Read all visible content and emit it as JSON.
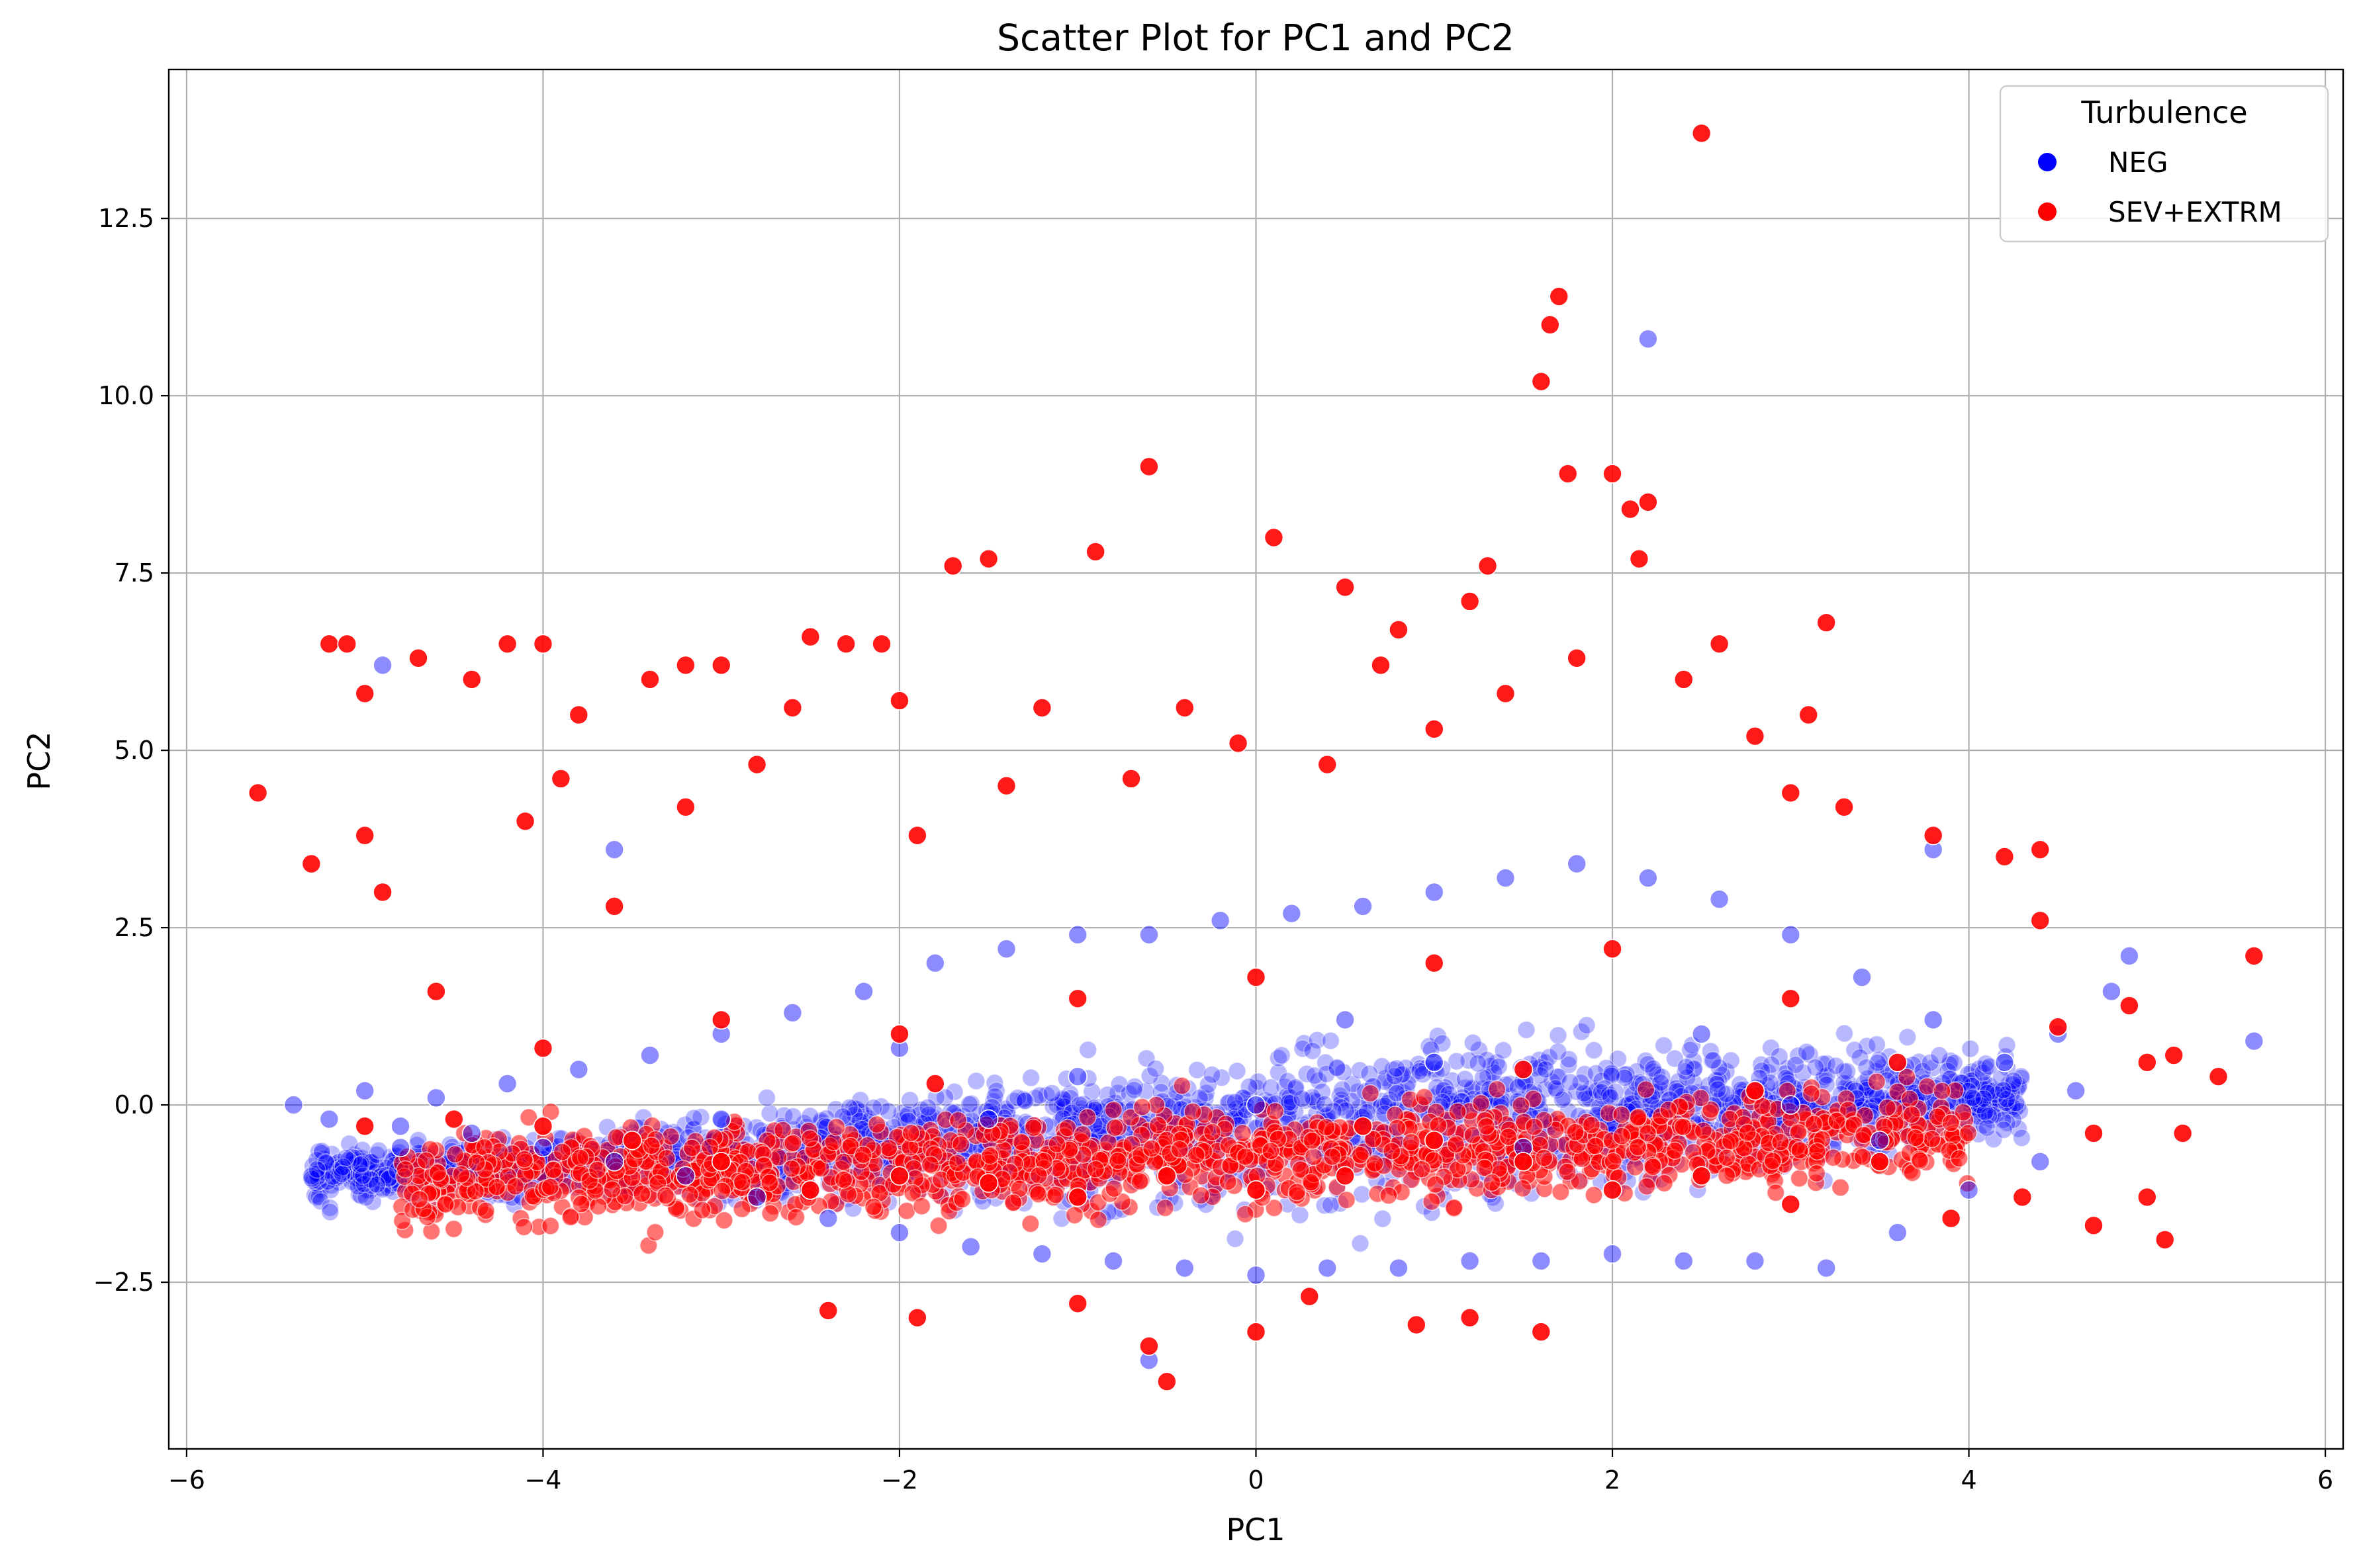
{
  "chart_data": {
    "type": "scatter",
    "title": "Scatter Plot for PC1 and PC2",
    "xlabel": "PC1",
    "ylabel": "PC2",
    "xlim": [
      -6.1,
      6.1
    ],
    "ylim": [
      -4.85,
      14.6
    ],
    "xticks": [
      -6,
      -4,
      -2,
      0,
      2,
      4,
      6
    ],
    "xtick_labels": [
      "−6",
      "−4",
      "−2",
      "0",
      "2",
      "4",
      "6"
    ],
    "yticks": [
      -2.5,
      0.0,
      2.5,
      5.0,
      7.5,
      10.0,
      12.5
    ],
    "ytick_labels": [
      "−2.5",
      "0.0",
      "2.5",
      "5.0",
      "7.5",
      "10.0",
      "12.5"
    ],
    "grid": true,
    "legend": {
      "title": "Turbulence",
      "placement": "top-right",
      "entries": [
        "NEG",
        "SEV+EXTRM"
      ]
    },
    "series": [
      {
        "name": "NEG",
        "color": "#0000ff",
        "points": [
          [
            -5.4,
            0.0
          ],
          [
            -5.2,
            -0.2
          ],
          [
            -5.0,
            0.2
          ],
          [
            -4.8,
            -0.3
          ],
          [
            -4.6,
            0.1
          ],
          [
            -4.4,
            -0.4
          ],
          [
            -4.2,
            0.3
          ],
          [
            -4.0,
            -0.6
          ],
          [
            -3.8,
            0.5
          ],
          [
            -3.6,
            -0.8
          ],
          [
            -3.4,
            0.7
          ],
          [
            -3.2,
            -1.0
          ],
          [
            -3.0,
            1.0
          ],
          [
            -2.8,
            -1.3
          ],
          [
            -2.6,
            1.3
          ],
          [
            -2.4,
            -1.6
          ],
          [
            -2.2,
            1.6
          ],
          [
            -2.0,
            -1.8
          ],
          [
            -1.8,
            2.0
          ],
          [
            -1.6,
            -2.0
          ],
          [
            -1.4,
            2.2
          ],
          [
            -1.2,
            -2.1
          ],
          [
            -1.0,
            2.4
          ],
          [
            -0.8,
            -2.2
          ],
          [
            -0.6,
            2.4
          ],
          [
            -0.4,
            -2.3
          ],
          [
            -0.2,
            2.6
          ],
          [
            0.0,
            -2.4
          ],
          [
            0.2,
            2.7
          ],
          [
            0.4,
            -2.3
          ],
          [
            0.6,
            2.8
          ],
          [
            0.8,
            -2.3
          ],
          [
            1.0,
            3.0
          ],
          [
            1.2,
            -2.2
          ],
          [
            1.4,
            3.2
          ],
          [
            1.6,
            -2.2
          ],
          [
            1.8,
            3.4
          ],
          [
            2.0,
            -2.1
          ],
          [
            2.2,
            3.2
          ],
          [
            2.4,
            -2.2
          ],
          [
            2.6,
            2.9
          ],
          [
            2.8,
            -2.2
          ],
          [
            3.0,
            2.4
          ],
          [
            3.2,
            -2.3
          ],
          [
            3.4,
            1.8
          ],
          [
            3.6,
            -1.8
          ],
          [
            3.8,
            1.2
          ],
          [
            4.0,
            -1.2
          ],
          [
            4.2,
            0.6
          ],
          [
            4.4,
            -0.8
          ],
          [
            4.6,
            0.2
          ],
          [
            -4.8,
            -0.6
          ],
          [
            -3.0,
            -0.2
          ],
          [
            -1.0,
            0.4
          ],
          [
            1.0,
            0.6
          ],
          [
            3.0,
            0.0
          ],
          [
            -2.0,
            0.8
          ],
          [
            0.5,
            1.2
          ],
          [
            2.5,
            1.0
          ],
          [
            3.5,
            -0.5
          ],
          [
            -1.5,
            -0.2
          ],
          [
            0.0,
            0.0
          ],
          [
            1.5,
            -0.6
          ],
          [
            4.5,
            1.0
          ],
          [
            4.8,
            1.6
          ],
          [
            -0.6,
            -3.6
          ],
          [
            2.2,
            10.8
          ],
          [
            -4.9,
            6.2
          ],
          [
            3.8,
            3.6
          ],
          [
            4.9,
            2.1
          ],
          [
            5.6,
            0.9
          ],
          [
            -3.6,
            3.6
          ]
        ]
      },
      {
        "name": "SEV+EXTRM",
        "color": "#ff0000",
        "points": [
          [
            -5.6,
            4.4
          ],
          [
            -5.3,
            3.4
          ],
          [
            -5.2,
            6.5
          ],
          [
            -5.1,
            6.5
          ],
          [
            -5.0,
            5.8
          ],
          [
            -5.0,
            3.8
          ],
          [
            -4.9,
            3.0
          ],
          [
            -4.7,
            6.3
          ],
          [
            -4.6,
            1.6
          ],
          [
            -4.4,
            6.0
          ],
          [
            -4.2,
            6.5
          ],
          [
            -4.1,
            4.0
          ],
          [
            -4.0,
            6.5
          ],
          [
            -3.9,
            4.6
          ],
          [
            -3.8,
            5.5
          ],
          [
            -3.6,
            2.8
          ],
          [
            -3.4,
            6.0
          ],
          [
            -3.2,
            6.2
          ],
          [
            -3.2,
            4.2
          ],
          [
            -3.0,
            6.2
          ],
          [
            -2.8,
            4.8
          ],
          [
            -2.6,
            5.6
          ],
          [
            -2.5,
            6.6
          ],
          [
            -2.3,
            6.5
          ],
          [
            -2.1,
            6.5
          ],
          [
            -2.0,
            5.7
          ],
          [
            -1.9,
            3.8
          ],
          [
            -1.7,
            7.6
          ],
          [
            -1.5,
            7.7
          ],
          [
            -1.4,
            4.5
          ],
          [
            -1.2,
            5.6
          ],
          [
            -0.9,
            7.8
          ],
          [
            -0.7,
            4.6
          ],
          [
            -0.6,
            9.0
          ],
          [
            -0.4,
            5.6
          ],
          [
            -0.1,
            5.1
          ],
          [
            0.1,
            8.0
          ],
          [
            0.4,
            4.8
          ],
          [
            0.5,
            7.3
          ],
          [
            0.7,
            6.2
          ],
          [
            0.8,
            6.7
          ],
          [
            1.0,
            5.3
          ],
          [
            1.2,
            7.1
          ],
          [
            1.3,
            7.6
          ],
          [
            1.4,
            5.8
          ],
          [
            1.6,
            10.2
          ],
          [
            1.65,
            11.0
          ],
          [
            1.7,
            11.4
          ],
          [
            1.75,
            8.9
          ],
          [
            1.8,
            6.3
          ],
          [
            2.0,
            8.9
          ],
          [
            2.1,
            8.4
          ],
          [
            2.15,
            7.7
          ],
          [
            2.2,
            8.5
          ],
          [
            2.5,
            13.7
          ],
          [
            2.4,
            6.0
          ],
          [
            2.6,
            6.5
          ],
          [
            2.8,
            5.2
          ],
          [
            3.1,
            5.5
          ],
          [
            3.2,
            6.8
          ],
          [
            3.0,
            4.4
          ],
          [
            3.3,
            4.2
          ],
          [
            3.8,
            3.8
          ],
          [
            4.2,
            3.5
          ],
          [
            4.4,
            3.6
          ],
          [
            4.4,
            2.6
          ],
          [
            4.5,
            1.1
          ],
          [
            4.7,
            -0.4
          ],
          [
            4.9,
            1.4
          ],
          [
            5.0,
            0.6
          ],
          [
            5.15,
            0.7
          ],
          [
            5.1,
            -1.9
          ],
          [
            5.4,
            0.4
          ],
          [
            5.6,
            2.1
          ],
          [
            5.2,
            -0.4
          ],
          [
            5.0,
            -1.3
          ],
          [
            4.7,
            -1.7
          ],
          [
            4.3,
            -1.3
          ],
          [
            3.9,
            -1.6
          ],
          [
            3.5,
            -0.8
          ],
          [
            3.0,
            -1.4
          ],
          [
            2.5,
            -1.0
          ],
          [
            2.0,
            -1.2
          ],
          [
            1.5,
            -0.8
          ],
          [
            1.0,
            -0.5
          ],
          [
            0.5,
            -1.0
          ],
          [
            0.0,
            -1.2
          ],
          [
            -0.5,
            -1.0
          ],
          [
            -1.0,
            -1.3
          ],
          [
            -1.5,
            -1.1
          ],
          [
            -2.0,
            -1.0
          ],
          [
            -2.5,
            -1.2
          ],
          [
            -3.0,
            -0.8
          ],
          [
            -3.5,
            -0.5
          ],
          [
            -4.0,
            -0.3
          ],
          [
            -4.5,
            -0.2
          ],
          [
            -5.0,
            -0.3
          ],
          [
            -0.5,
            -3.9
          ],
          [
            -0.6,
            -3.4
          ],
          [
            0.0,
            -3.2
          ],
          [
            0.9,
            -3.1
          ],
          [
            1.2,
            -3.0
          ],
          [
            1.6,
            -3.2
          ],
          [
            -1.9,
            -3.0
          ],
          [
            -2.4,
            -2.9
          ],
          [
            -1.0,
            -2.8
          ],
          [
            0.3,
            -2.7
          ],
          [
            -2.0,
            1.0
          ],
          [
            -1.0,
            1.5
          ],
          [
            0.0,
            1.8
          ],
          [
            1.0,
            2.0
          ],
          [
            2.0,
            2.2
          ],
          [
            3.0,
            1.5
          ],
          [
            -3.0,
            1.2
          ],
          [
            -4.0,
            0.8
          ],
          [
            1.5,
            0.5
          ],
          [
            2.8,
            0.2
          ],
          [
            -1.8,
            0.3
          ],
          [
            0.6,
            -0.3
          ],
          [
            3.6,
            0.6
          ]
        ]
      }
    ]
  }
}
